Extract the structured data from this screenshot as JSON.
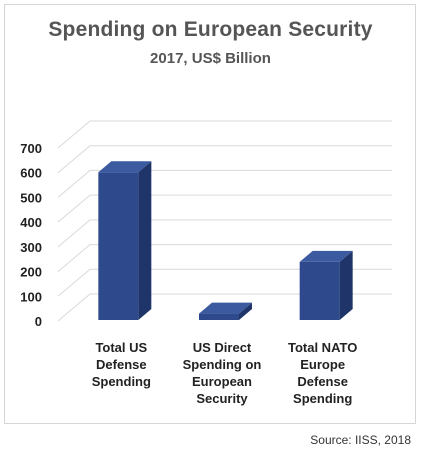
{
  "chart_data": {
    "type": "bar",
    "title": "Spending on European Security",
    "subtitle": "2017, US$ Billion",
    "categories": [
      [
        "Total US",
        "Defense",
        "Spending"
      ],
      [
        "US Direct",
        "Spending on",
        "European",
        "Security"
      ],
      [
        "Total NATO",
        "Europe",
        "Defense",
        "Spending"
      ]
    ],
    "values": [
      602,
      30,
      239
    ],
    "ylim": [
      0,
      700
    ],
    "yticks": [
      0,
      100,
      200,
      300,
      400,
      500,
      600,
      700
    ],
    "grid": true,
    "legend": "none",
    "bar_color": "#2e4a8c",
    "bar_side_color": "#1f3468",
    "bar_top_color": "#3b5aa0"
  },
  "source": "Source: IISS, 2018"
}
